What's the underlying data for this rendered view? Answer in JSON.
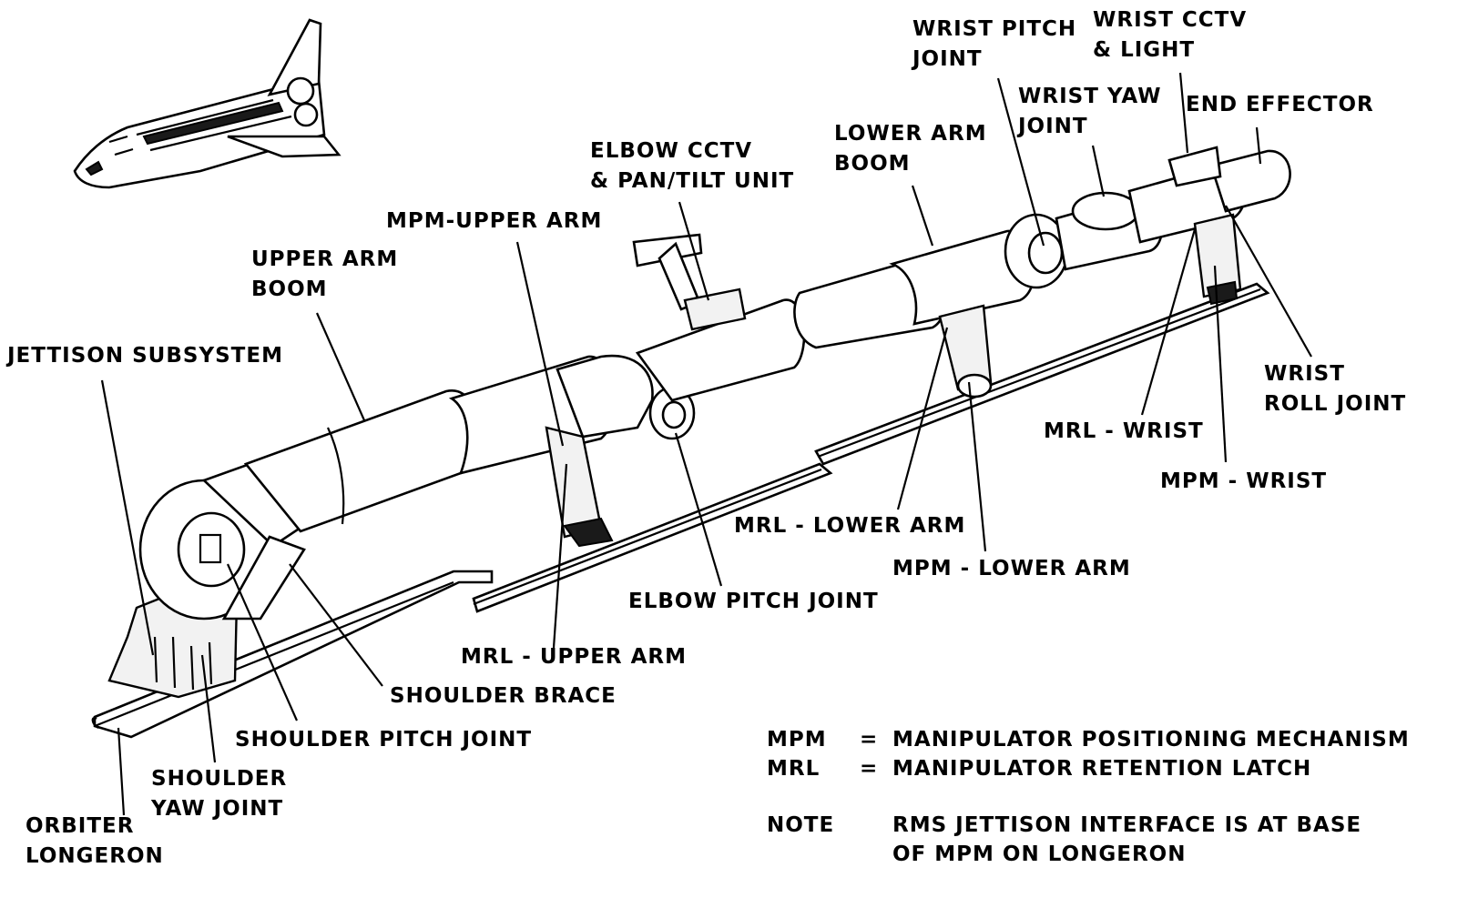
{
  "labels": {
    "jettison_subsystem": [
      "JETTISON SUBSYSTEM"
    ],
    "upper_arm_boom": [
      "UPPER ARM",
      "BOOM"
    ],
    "mpm_upper_arm": [
      "MPM-UPPER ARM"
    ],
    "elbow_cctv": [
      "ELBOW CCTV",
      "& PAN/TILT UNIT"
    ],
    "lower_arm_boom": [
      "LOWER ARM",
      "BOOM"
    ],
    "wrist_pitch_joint": [
      "WRIST PITCH",
      "JOINT"
    ],
    "wrist_cctv": [
      "WRIST CCTV",
      "& LIGHT"
    ],
    "wrist_yaw_joint": [
      "WRIST YAW",
      "JOINT"
    ],
    "end_effector": [
      "END EFFECTOR"
    ],
    "wrist_roll_joint": [
      "WRIST",
      "ROLL JOINT"
    ],
    "mrl_wrist": [
      "MRL - WRIST"
    ],
    "mpm_wrist": [
      "MPM - WRIST"
    ],
    "mrl_lower_arm": [
      "MRL - LOWER ARM"
    ],
    "mpm_lower_arm": [
      "MPM - LOWER ARM"
    ],
    "elbow_pitch_joint": [
      "ELBOW PITCH JOINT"
    ],
    "mrl_upper_arm": [
      "MRL - UPPER ARM"
    ],
    "shoulder_brace": [
      "SHOULDER BRACE"
    ],
    "shoulder_pitch_joint": [
      "SHOULDER PITCH JOINT"
    ],
    "shoulder_yaw_joint": [
      "SHOULDER",
      "YAW JOINT"
    ],
    "orbiter_longeron": [
      "ORBITER",
      "LONGERON"
    ]
  },
  "legend": [
    {
      "abbr": "MPM",
      "sep": "=",
      "definition": "MANIPULATOR POSITIONING MECHANISM"
    },
    {
      "abbr": "MRL",
      "sep": "=",
      "definition": "MANIPULATOR RETENTION LATCH"
    }
  ],
  "note": {
    "abbr": "NOTE",
    "lines": [
      "RMS JETTISON INTERFACE IS AT BASE",
      "OF MPM ON LONGERON"
    ]
  }
}
